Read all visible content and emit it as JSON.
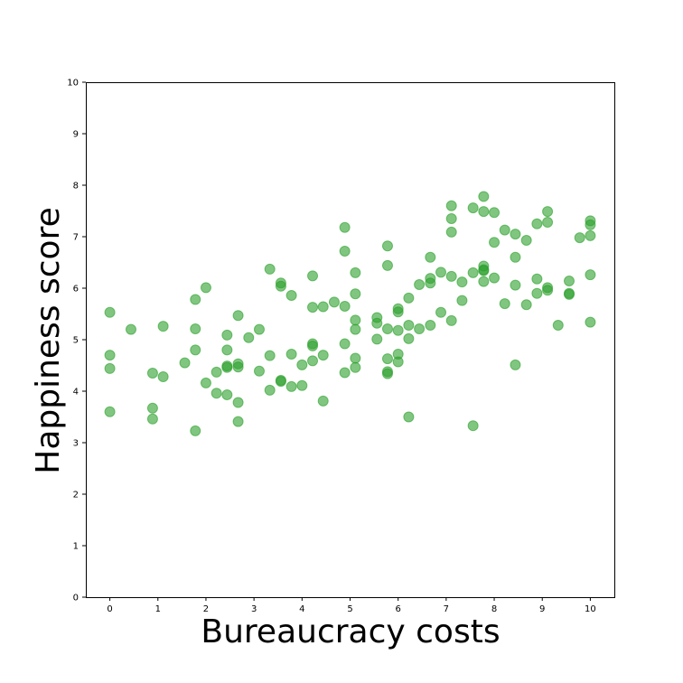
{
  "chart_data": {
    "type": "scatter",
    "title": "",
    "xlabel": "Bureaucracy costs",
    "ylabel": "Happiness score",
    "xlim": [
      -0.5,
      10.5
    ],
    "ylim": [
      0,
      10
    ],
    "xticks": [
      "0",
      "1",
      "2",
      "3",
      "4",
      "5",
      "6",
      "7",
      "8",
      "9",
      "10"
    ],
    "yticks": [
      "0",
      "1",
      "2",
      "3",
      "4",
      "5",
      "6",
      "7",
      "8",
      "9",
      "10"
    ],
    "grid": false,
    "legend": "none",
    "marker_color": "#2ca02c",
    "marker_alpha": 0.6,
    "series": [
      {
        "points": [
          [
            0,
            5.53
          ],
          [
            0,
            4.7
          ],
          [
            0,
            4.44
          ],
          [
            0,
            3.6
          ],
          [
            0.44,
            5.2
          ],
          [
            0.89,
            4.35
          ],
          [
            0.89,
            3.67
          ],
          [
            0.89,
            3.46
          ],
          [
            1.11,
            5.26
          ],
          [
            1.11,
            4.28
          ],
          [
            1.56,
            4.55
          ],
          [
            1.78,
            5.78
          ],
          [
            1.78,
            5.21
          ],
          [
            1.78,
            4.8
          ],
          [
            1.78,
            3.23
          ],
          [
            2.0,
            6.01
          ],
          [
            2.0,
            4.16
          ],
          [
            2.22,
            4.37
          ],
          [
            2.22,
            3.96
          ],
          [
            2.44,
            5.09
          ],
          [
            2.44,
            4.8
          ],
          [
            2.44,
            4.49
          ],
          [
            2.44,
            4.46
          ],
          [
            2.44,
            3.93
          ],
          [
            2.67,
            5.47
          ],
          [
            2.67,
            4.53
          ],
          [
            2.67,
            4.47
          ],
          [
            2.67,
            3.78
          ],
          [
            2.67,
            3.41
          ],
          [
            2.89,
            5.04
          ],
          [
            3.11,
            5.2
          ],
          [
            3.11,
            4.39
          ],
          [
            3.33,
            6.37
          ],
          [
            3.33,
            4.69
          ],
          [
            3.33,
            4.02
          ],
          [
            3.56,
            6.1
          ],
          [
            3.56,
            6.04
          ],
          [
            3.56,
            4.21
          ],
          [
            3.56,
            4.19
          ],
          [
            3.78,
            5.86
          ],
          [
            3.78,
            4.72
          ],
          [
            3.78,
            4.09
          ],
          [
            4.0,
            4.51
          ],
          [
            4.0,
            4.11
          ],
          [
            4.22,
            6.24
          ],
          [
            4.22,
            5.63
          ],
          [
            4.22,
            4.92
          ],
          [
            4.22,
            4.88
          ],
          [
            4.22,
            4.59
          ],
          [
            4.44,
            5.64
          ],
          [
            4.44,
            4.7
          ],
          [
            4.44,
            3.81
          ],
          [
            4.67,
            5.73
          ],
          [
            4.89,
            7.18
          ],
          [
            4.89,
            6.72
          ],
          [
            4.89,
            5.65
          ],
          [
            4.89,
            4.92
          ],
          [
            4.89,
            4.36
          ],
          [
            5.11,
            6.3
          ],
          [
            5.11,
            5.89
          ],
          [
            5.11,
            5.38
          ],
          [
            5.11,
            5.2
          ],
          [
            5.11,
            4.64
          ],
          [
            5.11,
            4.46
          ],
          [
            5.56,
            5.43
          ],
          [
            5.56,
            5.32
          ],
          [
            5.56,
            5.01
          ],
          [
            5.78,
            6.82
          ],
          [
            5.78,
            6.44
          ],
          [
            5.78,
            5.21
          ],
          [
            5.78,
            4.63
          ],
          [
            5.78,
            4.38
          ],
          [
            5.78,
            4.34
          ],
          [
            6.0,
            5.6
          ],
          [
            6.0,
            5.54
          ],
          [
            6.0,
            5.18
          ],
          [
            6.0,
            4.72
          ],
          [
            6.0,
            4.57
          ],
          [
            6.22,
            5.81
          ],
          [
            6.22,
            5.28
          ],
          [
            6.22,
            5.02
          ],
          [
            6.22,
            3.5
          ],
          [
            6.44,
            6.07
          ],
          [
            6.44,
            5.21
          ],
          [
            6.67,
            6.6
          ],
          [
            6.67,
            6.19
          ],
          [
            6.67,
            6.1
          ],
          [
            6.67,
            5.28
          ],
          [
            6.89,
            6.31
          ],
          [
            6.89,
            5.53
          ],
          [
            7.11,
            7.6
          ],
          [
            7.11,
            7.35
          ],
          [
            7.11,
            7.09
          ],
          [
            7.11,
            6.23
          ],
          [
            7.11,
            5.37
          ],
          [
            7.33,
            6.12
          ],
          [
            7.33,
            5.76
          ],
          [
            7.56,
            7.56
          ],
          [
            7.56,
            6.3
          ],
          [
            7.56,
            3.33
          ],
          [
            7.78,
            7.78
          ],
          [
            7.78,
            7.49
          ],
          [
            7.78,
            6.43
          ],
          [
            7.78,
            6.36
          ],
          [
            7.78,
            6.34
          ],
          [
            7.78,
            6.13
          ],
          [
            8.0,
            7.47
          ],
          [
            8.0,
            6.89
          ],
          [
            8.0,
            6.2
          ],
          [
            8.22,
            7.13
          ],
          [
            8.22,
            5.7
          ],
          [
            8.44,
            7.05
          ],
          [
            8.44,
            6.6
          ],
          [
            8.44,
            6.06
          ],
          [
            8.44,
            4.51
          ],
          [
            8.67,
            6.93
          ],
          [
            8.67,
            5.68
          ],
          [
            8.89,
            7.25
          ],
          [
            8.89,
            6.18
          ],
          [
            8.89,
            5.9
          ],
          [
            9.11,
            7.49
          ],
          [
            9.11,
            7.28
          ],
          [
            9.11,
            6.01
          ],
          [
            9.11,
            5.96
          ],
          [
            9.33,
            5.28
          ],
          [
            9.56,
            6.14
          ],
          [
            9.56,
            5.9
          ],
          [
            9.56,
            5.88
          ],
          [
            9.78,
            6.98
          ],
          [
            10.0,
            7.31
          ],
          [
            10.0,
            7.23
          ],
          [
            10.0,
            7.02
          ],
          [
            10.0,
            6.26
          ],
          [
            10.0,
            5.34
          ]
        ]
      }
    ]
  }
}
